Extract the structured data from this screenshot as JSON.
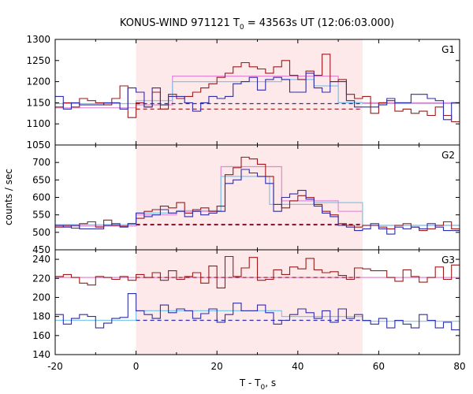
{
  "chart_data": {
    "type": "line",
    "title": {
      "main": "KONUS-WIND 971121 T",
      "sub": "0",
      "rest": " = 43563s UT (12:06:03.000)"
    },
    "xlabel": {
      "main": "T - T",
      "sub": "0",
      "rest": ", s"
    },
    "ylabel": "counts / sec",
    "xlim": [
      -20,
      80
    ],
    "xticks": [
      "-20",
      "0",
      "20",
      "40",
      "60",
      "80"
    ],
    "interval": [
      0,
      56
    ],
    "colors": {
      "interval_fill": "#fde8ea",
      "pink": "#e487d2",
      "blue": "#2e2ea8",
      "red": "#9b1b1b",
      "cyan": "#7fc6ec"
    },
    "panels": [
      {
        "label": "G1",
        "ylim": [
          1050,
          1300
        ],
        "yticks": [
          "1050",
          "1100",
          "1150",
          "1200",
          "1250",
          "1300"
        ],
        "x_edges": [
          -20,
          -18,
          -16,
          -14,
          -12,
          -10,
          -8,
          -6,
          -4,
          -2,
          0,
          2,
          4,
          6,
          8,
          10,
          12,
          14,
          16,
          18,
          20,
          22,
          24,
          26,
          28,
          30,
          32,
          34,
          36,
          38,
          40,
          42,
          44,
          46,
          48,
          50,
          52,
          54,
          56,
          58,
          60,
          62,
          64,
          66,
          68,
          70,
          72,
          74,
          76,
          78,
          80
        ],
        "series": [
          {
            "role": "bkg_red",
            "values": [
              1140,
              1150,
              1140,
              1160,
              1155,
              1150,
              1145,
              1160,
              1190,
              1115,
              1150,
              1140,
              1175,
              1135,
              1170,
              1160,
              1165,
              1175,
              1185,
              1195,
              1210,
              1220,
              1235,
              1245,
              1235,
              1230,
              1220,
              1235,
              1250,
              1215,
              1205,
              1225,
              1215,
              1265,
              1200,
              1205,
              1170,
              1160,
              1165,
              1125,
              1150,
              1155,
              1130,
              1135,
              1125,
              1130,
              1120,
              1140,
              1120,
              1105
            ],
            "bkg_level": 1135
          },
          {
            "role": "bkg_blue",
            "values": [
              1165,
              1135,
              1150,
              1145,
              1145,
              1145,
              1150,
              1150,
              1135,
              1185,
              1175,
              1140,
              1185,
              1145,
              1165,
              1165,
              1150,
              1130,
              1150,
              1165,
              1160,
              1165,
              1195,
              1200,
              1210,
              1180,
              1205,
              1210,
              1205,
              1175,
              1175,
              1220,
              1185,
              1175,
              1200,
              1200,
              1155,
              1140,
              1140,
              1140,
              1145,
              1160,
              1150,
              1150,
              1170,
              1170,
              1160,
              1155,
              1110,
              1150
            ],
            "bkg_level": 1148
          },
          {
            "role": "model_pink",
            "steps": [
              [
                -20,
                1138
              ],
              [
                0,
                1145
              ],
              [
                9,
                1213
              ],
              [
                36,
                1213
              ],
              [
                50,
                1150
              ],
              [
                56,
                1150
              ],
              [
                80,
                1140
              ]
            ]
          },
          {
            "role": "model_cyan",
            "steps": [
              [
                -20,
                1148
              ],
              [
                0,
                1155
              ],
              [
                9,
                1200
              ],
              [
                36,
                1205
              ],
              [
                44,
                1190
              ],
              [
                50,
                1150
              ],
              [
                56,
                1148
              ],
              [
                80,
                1148
              ]
            ]
          }
        ]
      },
      {
        "label": "G2",
        "ylim": [
          450,
          750
        ],
        "yticks": [
          "450",
          "500",
          "550",
          "600",
          "650",
          "700"
        ],
        "x_edges": [
          -20,
          -18,
          -16,
          -14,
          -12,
          -10,
          -8,
          -6,
          -4,
          -2,
          0,
          2,
          4,
          6,
          8,
          10,
          12,
          14,
          16,
          18,
          20,
          22,
          24,
          26,
          28,
          30,
          32,
          34,
          36,
          38,
          40,
          42,
          44,
          46,
          48,
          50,
          52,
          54,
          56,
          58,
          60,
          62,
          64,
          66,
          68,
          70,
          72,
          74,
          76,
          78,
          80
        ],
        "series": [
          {
            "role": "bkg_red",
            "values": [
              515,
              520,
              512,
              525,
              530,
              515,
              535,
              520,
              518,
              525,
              540,
              560,
              565,
              575,
              570,
              585,
              555,
              565,
              570,
              560,
              575,
              665,
              685,
              715,
              710,
              695,
              660,
              580,
              570,
              590,
              605,
              600,
              580,
              560,
              550,
              525,
              520,
              515,
              520,
              520,
              515,
              510,
              520,
              525,
              515,
              505,
              510,
              520,
              530,
              510
            ],
            "bkg_level": 523
          },
          {
            "role": "bkg_blue",
            "values": [
              520,
              515,
              520,
              510,
              510,
              510,
              520,
              525,
              515,
              525,
              555,
              545,
              550,
              565,
              555,
              560,
              545,
              560,
              550,
              555,
              560,
              640,
              650,
              680,
              670,
              660,
              640,
              560,
              600,
              610,
              620,
              595,
              575,
              555,
              545,
              520,
              515,
              505,
              510,
              525,
              510,
              495,
              515,
              510,
              515,
              510,
              525,
              515,
              505,
              505
            ],
            "bkg_level": 521
          },
          {
            "role": "model_pink",
            "steps": [
              [
                -20,
                518
              ],
              [
                0,
                550
              ],
              [
                10,
                560
              ],
              [
                21,
                688
              ],
              [
                36,
                688
              ],
              [
                36,
                590
              ],
              [
                44,
                590
              ],
              [
                50,
                560
              ],
              [
                56,
                560
              ],
              [
                56,
                520
              ],
              [
                80,
                520
              ]
            ]
          },
          {
            "role": "model_cyan",
            "steps": [
              [
                -20,
                522
              ],
              [
                0,
                555
              ],
              [
                10,
                562
              ],
              [
                21,
                660
              ],
              [
                33,
                660
              ],
              [
                33,
                580
              ],
              [
                44,
                585
              ],
              [
                56,
                580
              ],
              [
                56,
                520
              ],
              [
                80,
                520
              ]
            ]
          }
        ]
      },
      {
        "label": "G3",
        "ylim": [
          140,
          250
        ],
        "yticks": [
          "140",
          "160",
          "180",
          "200",
          "220",
          "240"
        ],
        "x_edges": [
          -20,
          -18,
          -16,
          -14,
          -12,
          -10,
          -8,
          -6,
          -4,
          -2,
          0,
          2,
          4,
          6,
          8,
          10,
          12,
          14,
          16,
          18,
          20,
          22,
          24,
          26,
          28,
          30,
          32,
          34,
          36,
          38,
          40,
          42,
          44,
          46,
          48,
          50,
          52,
          54,
          56,
          58,
          60,
          62,
          64,
          66,
          68,
          70,
          72,
          74,
          76,
          78,
          80
        ],
        "series": [
          {
            "role": "bkg_red",
            "values": [
              222,
              224,
              221,
              215,
              213,
              222,
              221,
              219,
              222,
              218,
              224,
              221,
              226,
              218,
              228,
              219,
              222,
              226,
              215,
              233,
              210,
              243,
              222,
              231,
              242,
              218,
              219,
              229,
              224,
              232,
              230,
              241,
              229,
              226,
              227,
              223,
              219,
              231,
              230,
              228,
              228,
              221,
              217,
              229,
              222,
              216,
              221,
              232,
              219,
              234
            ],
            "bkg_level": 221
          },
          {
            "role": "bkg_blue",
            "values": [
              182,
              172,
              178,
              182,
              180,
              168,
              173,
              178,
              179,
              204,
              186,
              182,
              178,
              192,
              184,
              188,
              186,
              178,
              183,
              188,
              174,
              182,
              194,
              186,
              186,
              192,
              184,
              172,
              176,
              182,
              188,
              184,
              178,
              186,
              174,
              188,
              178,
              182,
              176,
              172,
              178,
              168,
              176,
              172,
              168,
              182,
              176,
              168,
              174,
              166
            ],
            "bkg_level": 176
          },
          {
            "role": "model_pink",
            "steps": [
              [
                -20,
                221
              ],
              [
                80,
                221
              ]
            ]
          },
          {
            "role": "model_cyan",
            "steps": [
              [
                -20,
                176
              ],
              [
                0,
                186
              ],
              [
                36,
                186
              ],
              [
                36,
                180
              ],
              [
                56,
                180
              ],
              [
                56,
                175
              ],
              [
                80,
                175
              ]
            ]
          }
        ]
      }
    ]
  }
}
